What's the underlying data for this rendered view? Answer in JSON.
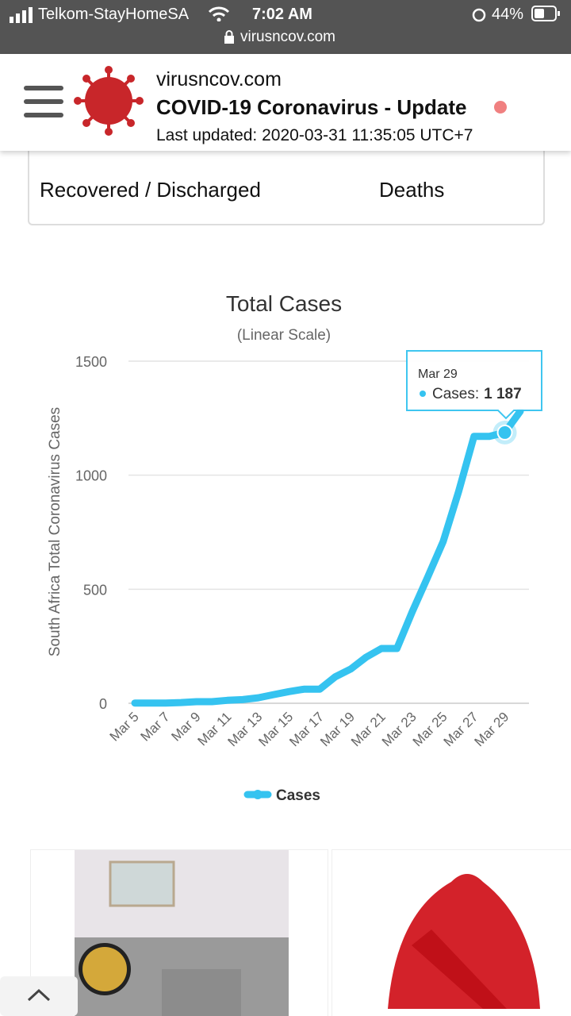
{
  "status_bar": {
    "carrier": "Telkom-StayHomeSA",
    "time": "7:02 AM",
    "battery": "44%",
    "url": "virusncov.com"
  },
  "header": {
    "site": "virusncov.com",
    "title": "COVID-19 Coronavirus - Update",
    "updated": "Last updated: 2020-03-31 11:35:05 UTC+7"
  },
  "stats": {
    "recovered_label": "Recovered / Discharged",
    "deaths_label": "Deaths"
  },
  "chart_data": {
    "type": "line",
    "title": "Total Cases",
    "subtitle": "(Linear Scale)",
    "y_label": "South Africa Total Coronavirus Cases",
    "categories": [
      "Mar 5",
      null,
      "Mar 7",
      null,
      "Mar 9",
      null,
      "Mar 11",
      null,
      "Mar 13",
      null,
      "Mar 15",
      null,
      "Mar 17",
      null,
      "Mar 19",
      null,
      "Mar 21",
      null,
      "Mar 23",
      null,
      "Mar 25",
      null,
      "Mar 27",
      null,
      "Mar 29",
      null
    ],
    "series": [
      {
        "name": "Cases",
        "color": "#35c3f0",
        "values": [
          1,
          1,
          1,
          3,
          7,
          7,
          13,
          16,
          24,
          38,
          51,
          62,
          62,
          116,
          150,
          202,
          240,
          240,
          402,
          554,
          709,
          927,
          1170,
          1170,
          1187,
          1280
        ],
        "value_labels": [
          null,
          null,
          null,
          null,
          null,
          null,
          null,
          null,
          null,
          null,
          null,
          null,
          null,
          null,
          null,
          null,
          null,
          null,
          null,
          null,
          null,
          null,
          null,
          null,
          "1 187",
          null
        ]
      }
    ],
    "tooltip": {
      "series_label": "Cases:"
    },
    "ylim": [
      0,
      1500
    ],
    "yticks": [
      0,
      500,
      1000,
      1500
    ],
    "grid": true
  }
}
